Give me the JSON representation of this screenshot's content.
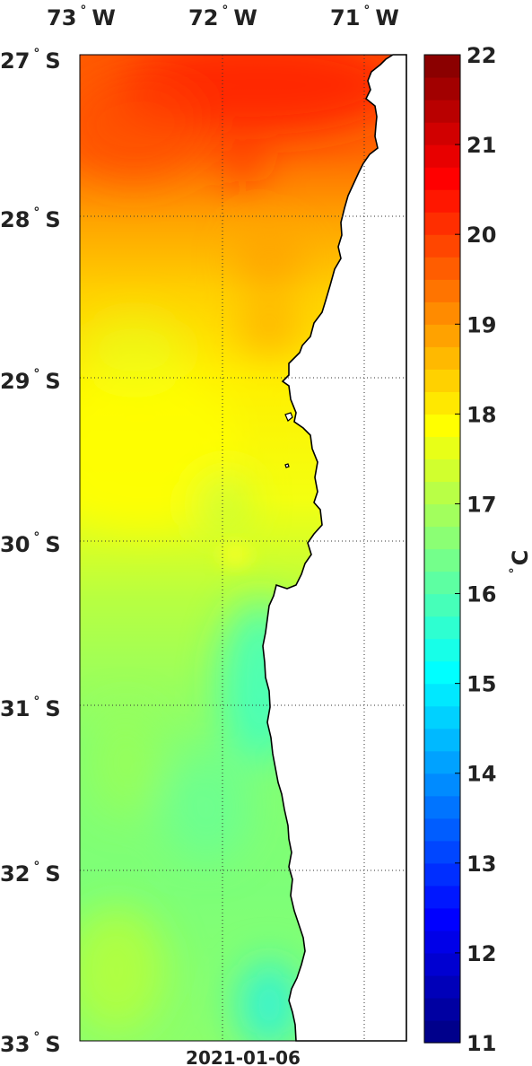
{
  "map": {
    "date": "2021-01-06",
    "lon_labels": [
      {
        "deg": "73",
        "hemi": "W"
      },
      {
        "deg": "72",
        "hemi": "W"
      },
      {
        "deg": "71",
        "hemi": "W"
      }
    ],
    "lat_labels": [
      {
        "deg": "27",
        "hemi": "S"
      },
      {
        "deg": "28",
        "hemi": "S"
      },
      {
        "deg": "29",
        "hemi": "S"
      },
      {
        "deg": "30",
        "hemi": "S"
      },
      {
        "deg": "31",
        "hemi": "S"
      },
      {
        "deg": "32",
        "hemi": "S"
      },
      {
        "deg": "33",
        "hemi": "S"
      }
    ],
    "degree_symbol": "°",
    "land_color": "#ffffff",
    "coast_color": "#000000",
    "grid_style": "dotted"
  },
  "colorbar": {
    "unit": "C",
    "unit_degree": "°",
    "min": 11,
    "max": 22,
    "tick_labels": [
      "22",
      "21",
      "20",
      "19",
      "18",
      "17",
      "16",
      "15",
      "14",
      "13",
      "12",
      "11"
    ],
    "colormap": "jet",
    "levels": 44
  }
}
